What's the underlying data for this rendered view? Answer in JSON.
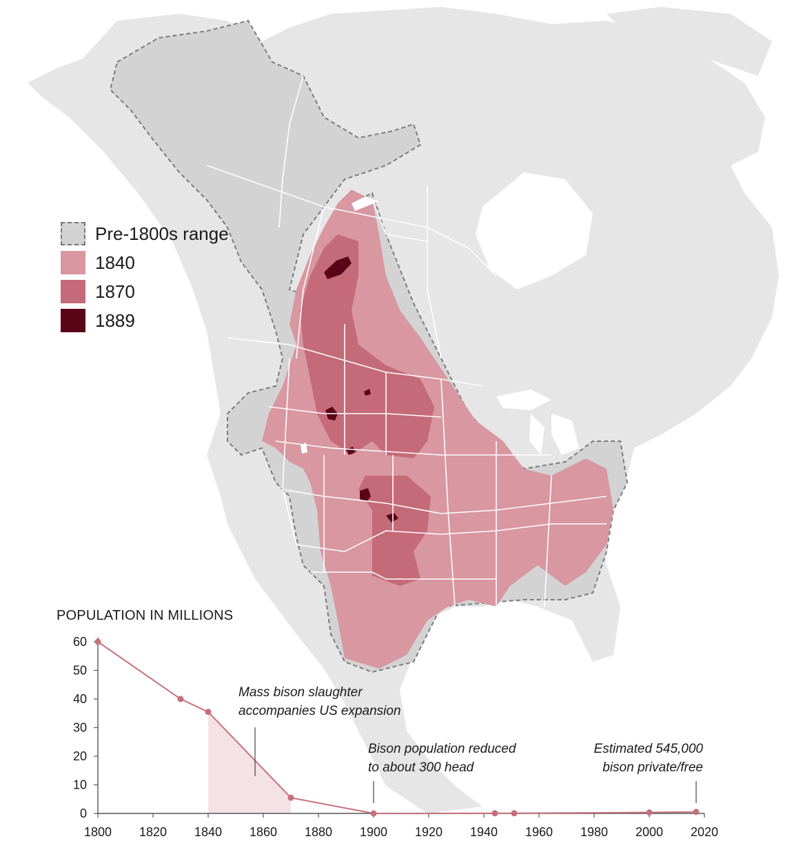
{
  "legend": {
    "items": [
      {
        "label": "Pre-1800s range",
        "color": "#d3d3d3",
        "style": "dashed"
      },
      {
        "label": "1840",
        "color": "#d897a1"
      },
      {
        "label": "1870",
        "color": "#c56a78"
      },
      {
        "label": "1889",
        "color": "#5a0417"
      }
    ]
  },
  "colors": {
    "land": "#e6e6e6",
    "pre1800": "#d3d3d3",
    "r1840": "#d897a1",
    "r1870": "#c56a78",
    "r1889": "#5a0417",
    "line": "#c6707c",
    "area": "#f4e2e5",
    "boundary": "#ffffff"
  },
  "chart_data": {
    "type": "line",
    "title": "POPULATION IN MILLIONS",
    "xlim": [
      1800,
      2020
    ],
    "ylim": [
      0,
      60
    ],
    "x_ticks": [
      1800,
      1820,
      1840,
      1860,
      1880,
      1900,
      1920,
      1940,
      1960,
      1980,
      2000,
      2020
    ],
    "y_ticks": [
      0,
      10,
      20,
      30,
      40,
      50,
      60
    ],
    "x": [
      1800,
      1830,
      1840,
      1870,
      1900,
      1944,
      1951,
      2000,
      2017
    ],
    "y": [
      60,
      40,
      35.5,
      5.5,
      0.0003,
      0.05,
      0.05,
      0.36,
      0.545
    ],
    "shaded_range": [
      1840,
      1870
    ],
    "annotations": [
      {
        "lines": [
          "Mass bison slaughter",
          "accompanies US expansion"
        ],
        "x": 1857,
        "y": 13,
        "align": "start"
      },
      {
        "lines": [
          "Bison population reduced",
          "to about 300 head"
        ],
        "x": 1900,
        "y": 3,
        "align": "start"
      },
      {
        "lines": [
          "Estimated 545,000",
          "bison private/free"
        ],
        "x": 2017,
        "y": 3,
        "align": "end"
      }
    ]
  }
}
